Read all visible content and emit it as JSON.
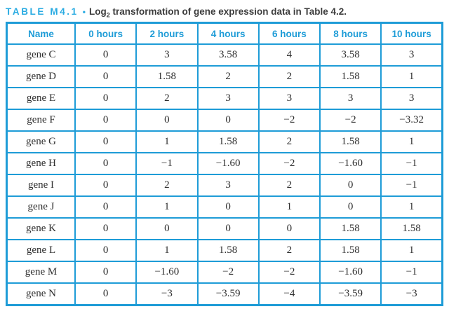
{
  "title": {
    "label": "TABLE M4.1",
    "bullet": "•",
    "log_prefix": "Log",
    "log_subscript": "2",
    "rest": " transformation of gene expression data in Table 4.2."
  },
  "colors": {
    "accent_blue": "#1e9cd7",
    "title_cyan": "#29abe2",
    "body_text": "#2e2e2e"
  },
  "table": {
    "columns": [
      "Name",
      "0 hours",
      "2 hours",
      "4 hours",
      "6 hours",
      "8 hours",
      "10 hours"
    ],
    "rows": [
      {
        "name": "gene C",
        "values": [
          "0",
          "3",
          "3.58",
          "4",
          "3.58",
          "3"
        ]
      },
      {
        "name": "gene D",
        "values": [
          "0",
          "1.58",
          "2",
          "2",
          "1.58",
          "1"
        ]
      },
      {
        "name": "gene E",
        "values": [
          "0",
          "2",
          "3",
          "3",
          "3",
          "3"
        ]
      },
      {
        "name": "gene F",
        "values": [
          "0",
          "0",
          "0",
          "−2",
          "−2",
          "−3.32"
        ]
      },
      {
        "name": "gene G",
        "values": [
          "0",
          "1",
          "1.58",
          "2",
          "1.58",
          "1"
        ]
      },
      {
        "name": "gene H",
        "values": [
          "0",
          "−1",
          "−1.60",
          "−2",
          "−1.60",
          "−1"
        ]
      },
      {
        "name": "gene I",
        "values": [
          "0",
          "2",
          "3",
          "2",
          "0",
          "−1"
        ]
      },
      {
        "name": "gene J",
        "values": [
          "0",
          "1",
          "0",
          "1",
          "0",
          "1"
        ]
      },
      {
        "name": "gene K",
        "values": [
          "0",
          "0",
          "0",
          "0",
          "1.58",
          "1.58"
        ]
      },
      {
        "name": "gene L",
        "values": [
          "0",
          "1",
          "1.58",
          "2",
          "1.58",
          "1"
        ]
      },
      {
        "name": "gene M",
        "values": [
          "0",
          "−1.60",
          "−2",
          "−2",
          "−1.60",
          "−1"
        ]
      },
      {
        "name": "gene N",
        "values": [
          "0",
          "−3",
          "−3.59",
          "−4",
          "−3.59",
          "−3"
        ]
      }
    ]
  },
  "chart_data": {
    "type": "table",
    "title": "TABLE M4.1 • Log2 transformation of gene expression data in Table 4.2.",
    "categories": [
      "0 hours",
      "2 hours",
      "4 hours",
      "6 hours",
      "8 hours",
      "10 hours"
    ],
    "series": [
      {
        "name": "gene C",
        "values": [
          0,
          3,
          3.58,
          4,
          3.58,
          3
        ]
      },
      {
        "name": "gene D",
        "values": [
          0,
          1.58,
          2,
          2,
          1.58,
          1
        ]
      },
      {
        "name": "gene E",
        "values": [
          0,
          2,
          3,
          3,
          3,
          3
        ]
      },
      {
        "name": "gene F",
        "values": [
          0,
          0,
          0,
          -2,
          -2,
          -3.32
        ]
      },
      {
        "name": "gene G",
        "values": [
          0,
          1,
          1.58,
          2,
          1.58,
          1
        ]
      },
      {
        "name": "gene H",
        "values": [
          0,
          -1,
          -1.6,
          -2,
          -1.6,
          -1
        ]
      },
      {
        "name": "gene I",
        "values": [
          0,
          2,
          3,
          2,
          0,
          -1
        ]
      },
      {
        "name": "gene J",
        "values": [
          0,
          1,
          0,
          1,
          0,
          1
        ]
      },
      {
        "name": "gene K",
        "values": [
          0,
          0,
          0,
          0,
          1.58,
          1.58
        ]
      },
      {
        "name": "gene L",
        "values": [
          0,
          1,
          1.58,
          2,
          1.58,
          1
        ]
      },
      {
        "name": "gene M",
        "values": [
          0,
          -1.6,
          -2,
          -2,
          -1.6,
          -1
        ]
      },
      {
        "name": "gene N",
        "values": [
          0,
          -3,
          -3.59,
          -4,
          -3.59,
          -3
        ]
      }
    ]
  }
}
